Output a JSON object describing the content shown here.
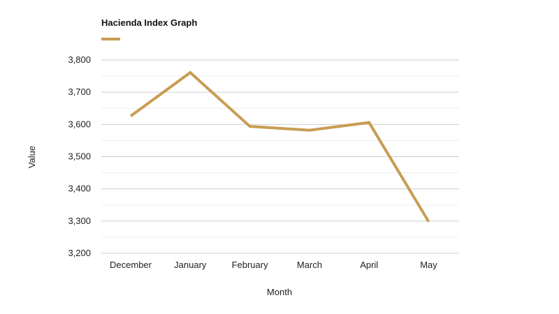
{
  "colors": {
    "series": "#c89d53",
    "grid_major": "#cfcfcf",
    "grid_minor": "#eeeeee",
    "text": "#222222",
    "background": "#ffffff"
  },
  "chart_data": {
    "type": "line",
    "title": "Hacienda Index Graph",
    "xlabel": "Month",
    "ylabel": "Value",
    "categories": [
      "December",
      "January",
      "February",
      "March",
      "April",
      "May"
    ],
    "series": [
      {
        "values": [
          3626,
          3761,
          3594,
          3582,
          3606,
          3298
        ]
      }
    ],
    "ylim": [
      3200,
      3800
    ],
    "y_ticks": [
      3200,
      3300,
      3400,
      3500,
      3600,
      3700,
      3800
    ],
    "y_tick_labels": [
      "3,200",
      "3,300",
      "3,400",
      "3,500",
      "3,600",
      "3,700",
      "3,800"
    ],
    "grid": true,
    "legend_position": "top-left"
  }
}
